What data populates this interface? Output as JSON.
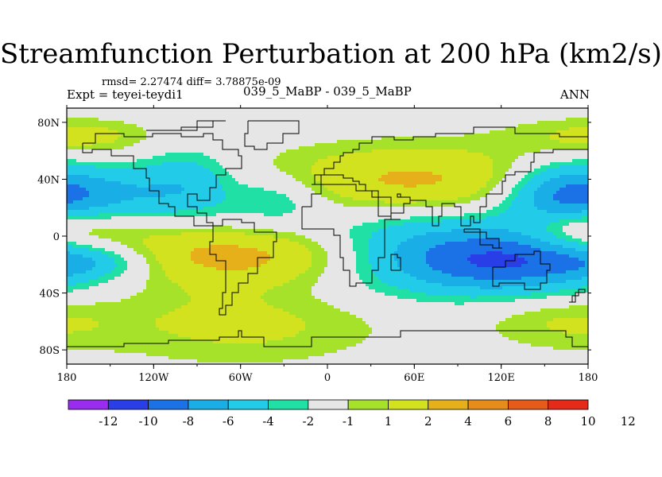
{
  "chart_data": {
    "type": "contour map",
    "title": "Streamfunction Perturbation at 200 hPa (km2/s)",
    "subtitle": "rmsd= 2.27474  diff= 3.78875e-09",
    "left_label": "Expt = teyei-teydi1",
    "center_label": "039_5_MaBP - 039_5_MaBP",
    "right_label": "ANN",
    "x_ticks": [
      "180",
      "120W",
      "60W",
      "0",
      "60E",
      "120E",
      "180"
    ],
    "x_tick_values": [
      -180,
      -120,
      -60,
      0,
      60,
      120,
      180
    ],
    "y_ticks": [
      "80N",
      "40N",
      "0",
      "40S",
      "80S"
    ],
    "y_tick_values": [
      80,
      40,
      0,
      -40,
      -80
    ],
    "xlim": [
      -180,
      180
    ],
    "ylim": [
      -90,
      90
    ],
    "levels": [
      -12,
      -10,
      -8,
      -6,
      -4,
      -2,
      -1,
      1,
      2,
      4,
      6,
      8,
      10,
      12
    ],
    "level_labels": [
      "-12",
      "-10",
      "-8",
      "-6",
      "-4",
      "-2",
      "-1",
      "1",
      "2",
      "4",
      "6",
      "8",
      "10",
      "12"
    ],
    "colors": [
      "#9a2cf0",
      "#2a3ee8",
      "#1a72e6",
      "#1aaee6",
      "#22cce8",
      "#20e0a6",
      "#e6e6e6",
      "#a6e22a",
      "#d2e21e",
      "#e6b01a",
      "#e68c1a",
      "#e65a1a",
      "#e62a1a"
    ],
    "features": [
      {
        "lon": -160,
        "lat": 30,
        "value": -4.5,
        "rlon": 40,
        "rlat": 14
      },
      {
        "lon": -95,
        "lat": 38,
        "value": -3,
        "rlon": 22,
        "rlat": 16
      },
      {
        "lon": -35,
        "lat": 28,
        "value": -2.5,
        "rlon": 24,
        "rlat": 12
      },
      {
        "lon": -72,
        "lat": 8,
        "value": -1.5,
        "rlon": 110,
        "rlat": 14
      },
      {
        "lon": -160,
        "lat": 5,
        "value": 2.5,
        "rlon": 40,
        "rlat": 12
      },
      {
        "lon": -60,
        "lat": -12,
        "value": 5.5,
        "rlon": 70,
        "rlat": 16
      },
      {
        "lon": -60,
        "lat": -62,
        "value": 2.5,
        "rlon": 70,
        "rlat": 20
      },
      {
        "lon": -165,
        "lat": -18,
        "value": -2.5,
        "rlon": 30,
        "rlat": 8
      },
      {
        "lon": 60,
        "lat": 38,
        "value": 4.5,
        "rlon": 75,
        "rlat": 18
      },
      {
        "lon": 85,
        "lat": -10,
        "value": -4.5,
        "rlon": 70,
        "rlat": 20
      },
      {
        "lon": 130,
        "lat": -20,
        "value": -5,
        "rlon": 60,
        "rlat": 15
      },
      {
        "lon": 160,
        "lat": 30,
        "value": -5,
        "rlon": 28,
        "rlat": 16
      },
      {
        "lon": 170,
        "lat": 70,
        "value": 1.5,
        "rlon": 40,
        "rlat": 10
      },
      {
        "lon": -160,
        "lat": 70,
        "value": 1.5,
        "rlon": 30,
        "rlat": 8
      },
      {
        "lon": 170,
        "lat": 5,
        "value": 2.5,
        "rlon": 25,
        "rlat": 10
      },
      {
        "lon": 160,
        "lat": -60,
        "value": 2,
        "rlon": 40,
        "rlat": 14
      },
      {
        "lon": 0,
        "lat": -40,
        "value": -0.3,
        "rlon": 40,
        "rlat": 10
      }
    ]
  }
}
